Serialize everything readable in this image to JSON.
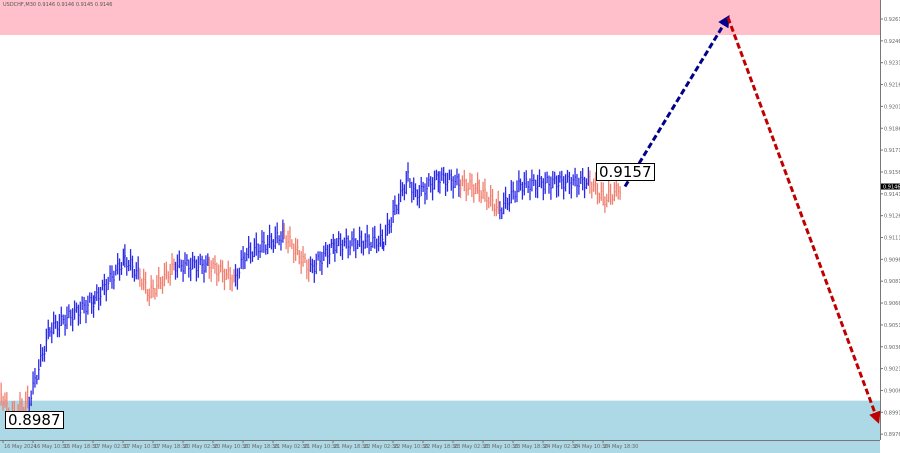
{
  "header": {
    "title": "USDCHF,M30  0.9146 0.9146 0.9145 0.9146"
  },
  "labels": {
    "resistance_level": "0.8987",
    "current_level": "0.9157",
    "current_price": "0.9146"
  },
  "chart_data": {
    "type": "bar",
    "symbol": "USDCHF",
    "timeframe": "M30",
    "ylim": [
      0.897,
      0.927
    ],
    "yticks": [
      "0.9261",
      "0.9246",
      "0.9231",
      "0.9216",
      "0.9201",
      "0.9186",
      "0.9171",
      "0.9156",
      "0.9141",
      "0.9126",
      "0.9111",
      "0.9096",
      "0.9081",
      "0.9066",
      "0.9051",
      "0.9036",
      "0.9021",
      "0.9006",
      "0.8991",
      "0.8976"
    ],
    "xticks": [
      "16 May 2024",
      "16 May 10:30",
      "16 May 18:30",
      "17 May 02:30",
      "17 May 10:30",
      "17 May 18:30",
      "20 May 02:30",
      "20 May 10:30",
      "20 May 18:30",
      "21 May 02:30",
      "21 May 10:30",
      "21 May 18:30",
      "22 May 02:30",
      "22 May 10:30",
      "22 May 18:30",
      "23 May 02:30",
      "23 May 10:30",
      "23 May 18:30",
      "24 May 02:30",
      "24 May 10:30",
      "24 May 18:30"
    ],
    "zones": [
      {
        "name": "sell zone",
        "from": 0.925,
        "to": 0.928,
        "color": "#ffc0cb"
      },
      {
        "name": "buy zone",
        "from": 0.896,
        "to": 0.8999,
        "color": "#add8e6"
      }
    ],
    "series": [
      [
        "16 May 01:30",
        0.9008,
        "salmon"
      ],
      [
        "16 May 04:30",
        0.8987,
        "salmon"
      ],
      [
        "16 May 09:30",
        0.8999,
        "salmon"
      ],
      [
        "16 May 15:00",
        0.9048,
        "blue"
      ],
      [
        "17 May 03:00",
        0.9068,
        "blue"
      ],
      [
        "17 May 11:00",
        0.9096,
        "blue"
      ],
      [
        "17 May 15:00",
        0.9085,
        "blue"
      ],
      [
        "17 May 17:30",
        0.9072,
        "salmon"
      ],
      [
        "20 May 00:30",
        0.9092,
        "salmon"
      ],
      [
        "20 May 09:30",
        0.9092,
        "blue"
      ],
      [
        "20 May 16:30",
        0.9082,
        "salmon"
      ],
      [
        "20 May 19:00",
        0.9099,
        "blue"
      ],
      [
        "21 May 05:30",
        0.9113,
        "blue"
      ],
      [
        "21 May 09:30",
        0.9099,
        "salmon"
      ],
      [
        "21 May 12:30",
        0.9089,
        "salmon"
      ],
      [
        "21 May 19:00",
        0.9106,
        "blue"
      ],
      [
        "22 May 08:00",
        0.9109,
        "blue"
      ],
      [
        "22 May 11:00",
        0.913,
        "blue"
      ],
      [
        "22 May 14:30",
        0.9152,
        "blue"
      ],
      [
        "22 May 16:30",
        0.914,
        "blue"
      ],
      [
        "22 May 23:00",
        0.9152,
        "blue"
      ],
      [
        "23 May 04:30",
        0.9148,
        "blue"
      ],
      [
        "23 May 09:30",
        0.9144,
        "salmon"
      ],
      [
        "23 May 15:00",
        0.913,
        "salmon"
      ],
      [
        "23 May 20:30",
        0.9147,
        "blue"
      ],
      [
        "24 May 07:00",
        0.9149,
        "blue"
      ],
      [
        "24 May 15:00",
        0.9149,
        "blue"
      ],
      [
        "24 May 19:00",
        0.9137,
        "salmon"
      ],
      [
        "24 May 23:30",
        0.9146,
        "salmon"
      ]
    ],
    "forecast": [
      {
        "from": 0.9146,
        "to": 0.9262,
        "color": "#00008b"
      },
      {
        "from": 0.9262,
        "to": 0.8985,
        "color": "#c00000"
      }
    ],
    "colors": {
      "blue": "#2a2ae6",
      "salmon": "#f08070",
      "axis": "#777777"
    }
  }
}
